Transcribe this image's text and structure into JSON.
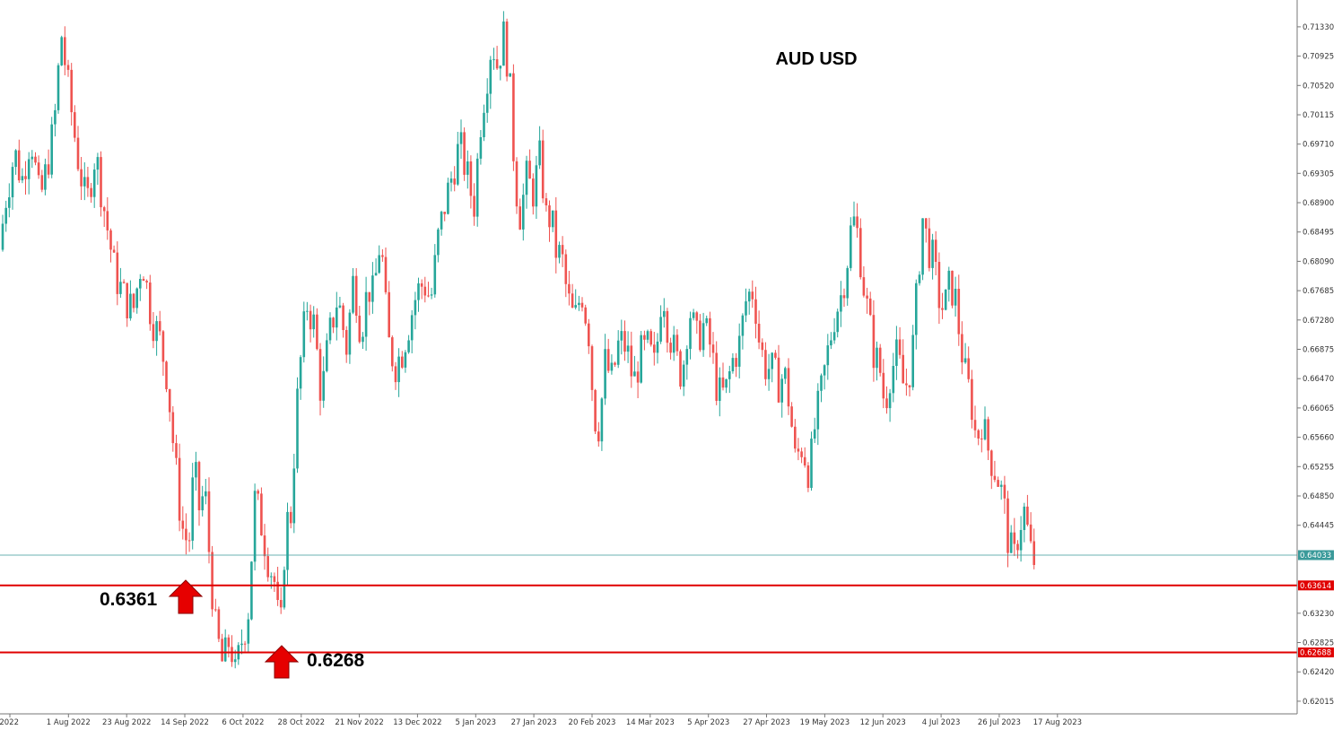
{
  "chart_data": {
    "type": "candlestick",
    "title": "AUD USD",
    "colors": {
      "bull": "#26a69a",
      "bear": "#ef5350",
      "level": "#e00000",
      "current": "#3a9a9a",
      "axis": "#777777"
    },
    "ylim": [
      0.6184,
      0.717
    ],
    "y_ticks": [
      "0.71330",
      "0.70925",
      "0.70520",
      "0.70115",
      "0.69710",
      "0.69305",
      "0.68900",
      "0.68495",
      "0.68090",
      "0.67685",
      "0.67280",
      "0.66875",
      "0.66470",
      "0.66065",
      "0.65660",
      "0.65255",
      "0.64850",
      "0.64445",
      "0.64033",
      "0.63614",
      "0.63230",
      "0.62825",
      "0.62688",
      "0.62420",
      "0.62015"
    ],
    "x_ticks": [
      "2022",
      "1 Aug 2022",
      "23 Aug 2022",
      "14 Sep 2022",
      "6 Oct 2022",
      "28 Oct 2022",
      "21 Nov 2022",
      "13 Dec 2022",
      "5 Jan 2023",
      "27 Jan 2023",
      "20 Feb 2023",
      "14 Mar 2023",
      "5 Apr 2023",
      "27 Apr 2023",
      "19 May 2023",
      "12 Jun 2023",
      "4 Jul 2023",
      "26 Jul 2023",
      "17 Aug 2023"
    ],
    "current_price": {
      "value": 0.64033,
      "label": "0.64033"
    },
    "levels": [
      {
        "value": 0.63614,
        "label": "0.63614"
      },
      {
        "value": 0.62688,
        "label": "0.62688"
      }
    ],
    "annotations": [
      {
        "text": "0.6361",
        "marker": "up-arrow-icon"
      },
      {
        "text": "0.6268",
        "marker": "up-arrow-icon"
      }
    ],
    "path": [
      [
        0,
        0.6795
      ],
      [
        10,
        0.6895
      ],
      [
        20,
        0.696
      ],
      [
        28,
        0.692
      ],
      [
        38,
        0.6985
      ],
      [
        48,
        0.689
      ],
      [
        56,
        0.694
      ],
      [
        64,
        0.6995
      ],
      [
        72,
        0.7125
      ],
      [
        80,
        0.7045
      ],
      [
        90,
        0.6955
      ],
      [
        100,
        0.6885
      ],
      [
        110,
        0.696
      ],
      [
        120,
        0.688
      ],
      [
        132,
        0.679
      ],
      [
        142,
        0.676
      ],
      [
        152,
        0.674
      ],
      [
        162,
        0.6815
      ],
      [
        172,
        0.6735
      ],
      [
        182,
        0.67
      ],
      [
        190,
        0.665
      ],
      [
        198,
        0.654
      ],
      [
        206,
        0.6445
      ],
      [
        214,
        0.6415
      ],
      [
        220,
        0.6525
      ],
      [
        226,
        0.6465
      ],
      [
        232,
        0.6495
      ],
      [
        238,
        0.6385
      ],
      [
        244,
        0.63
      ],
      [
        252,
        0.625
      ],
      [
        260,
        0.629
      ],
      [
        266,
        0.6235
      ],
      [
        272,
        0.628
      ],
      [
        280,
        0.632
      ],
      [
        288,
        0.6485
      ],
      [
        296,
        0.644
      ],
      [
        302,
        0.64
      ],
      [
        310,
        0.6365
      ],
      [
        316,
        0.6282
      ],
      [
        322,
        0.6445
      ],
      [
        328,
        0.646
      ],
      [
        334,
        0.66
      ],
      [
        340,
        0.669
      ],
      [
        346,
        0.675
      ],
      [
        354,
        0.672
      ],
      [
        362,
        0.662
      ],
      [
        370,
        0.67
      ],
      [
        380,
        0.676
      ],
      [
        390,
        0.669
      ],
      [
        398,
        0.679
      ],
      [
        406,
        0.671
      ],
      [
        414,
        0.6775
      ],
      [
        420,
        0.676
      ],
      [
        428,
        0.6845
      ],
      [
        436,
        0.67
      ],
      [
        444,
        0.6665
      ],
      [
        452,
        0.6685
      ],
      [
        460,
        0.6725
      ],
      [
        468,
        0.6765
      ],
      [
        476,
        0.678
      ],
      [
        484,
        0.6755
      ],
      [
        492,
        0.684
      ],
      [
        500,
        0.689
      ],
      [
        508,
        0.693
      ],
      [
        516,
        0.697
      ],
      [
        524,
        0.693
      ],
      [
        532,
        0.6885
      ],
      [
        540,
        0.701
      ],
      [
        546,
        0.706
      ],
      [
        552,
        0.7115
      ],
      [
        558,
        0.708
      ],
      [
        566,
        0.7125
      ],
      [
        572,
        0.705
      ],
      [
        578,
        0.692
      ],
      [
        584,
        0.687
      ],
      [
        590,
        0.6925
      ],
      [
        598,
        0.6905
      ],
      [
        606,
        0.6955
      ],
      [
        612,
        0.687
      ],
      [
        618,
        0.687
      ],
      [
        624,
        0.682
      ],
      [
        630,
        0.6815
      ],
      [
        636,
        0.676
      ],
      [
        644,
        0.6725
      ],
      [
        652,
        0.677
      ],
      [
        660,
        0.671
      ],
      [
        666,
        0.6595
      ],
      [
        672,
        0.658
      ],
      [
        678,
        0.667
      ],
      [
        686,
        0.6645
      ],
      [
        694,
        0.67
      ],
      [
        702,
        0.669
      ],
      [
        710,
        0.664
      ],
      [
        718,
        0.668
      ],
      [
        726,
        0.669
      ],
      [
        734,
        0.666
      ],
      [
        742,
        0.678
      ],
      [
        748,
        0.672
      ],
      [
        756,
        0.668
      ],
      [
        764,
        0.665
      ],
      [
        772,
        0.6745
      ],
      [
        780,
        0.67
      ],
      [
        788,
        0.672
      ],
      [
        796,
        0.669
      ],
      [
        804,
        0.6625
      ],
      [
        812,
        0.6625
      ],
      [
        820,
        0.667
      ],
      [
        828,
        0.6695
      ],
      [
        836,
        0.676
      ],
      [
        844,
        0.677
      ],
      [
        850,
        0.67
      ],
      [
        856,
        0.6665
      ],
      [
        864,
        0.666
      ],
      [
        872,
        0.664
      ],
      [
        878,
        0.6655
      ],
      [
        884,
        0.661
      ],
      [
        890,
        0.6535
      ],
      [
        898,
        0.6555
      ],
      [
        906,
        0.6515
      ],
      [
        912,
        0.658
      ],
      [
        918,
        0.662
      ],
      [
        926,
        0.668
      ],
      [
        934,
        0.6735
      ],
      [
        942,
        0.6765
      ],
      [
        948,
        0.681
      ],
      [
        954,
        0.687
      ],
      [
        960,
        0.6845
      ],
      [
        966,
        0.678
      ],
      [
        972,
        0.673
      ],
      [
        978,
        0.668
      ],
      [
        984,
        0.6665
      ],
      [
        990,
        0.661
      ],
      [
        996,
        0.6655
      ],
      [
        1004,
        0.668
      ],
      [
        1012,
        0.663
      ],
      [
        1020,
        0.667
      ],
      [
        1026,
        0.677
      ],
      [
        1032,
        0.687
      ],
      [
        1038,
        0.683
      ],
      [
        1044,
        0.681
      ],
      [
        1050,
        0.676
      ],
      [
        1056,
        0.674
      ],
      [
        1062,
        0.6775
      ],
      [
        1068,
        0.6765
      ],
      [
        1074,
        0.67
      ],
      [
        1080,
        0.665
      ],
      [
        1086,
        0.662
      ],
      [
        1092,
        0.656
      ],
      [
        1098,
        0.659
      ],
      [
        1104,
        0.6555
      ],
      [
        1110,
        0.653
      ],
      [
        1116,
        0.651
      ],
      [
        1122,
        0.648
      ],
      [
        1128,
        0.642
      ],
      [
        1134,
        0.6395
      ],
      [
        1140,
        0.6445
      ],
      [
        1146,
        0.6465
      ],
      [
        1152,
        0.641
      ],
      [
        1156,
        0.6396
      ]
    ]
  }
}
